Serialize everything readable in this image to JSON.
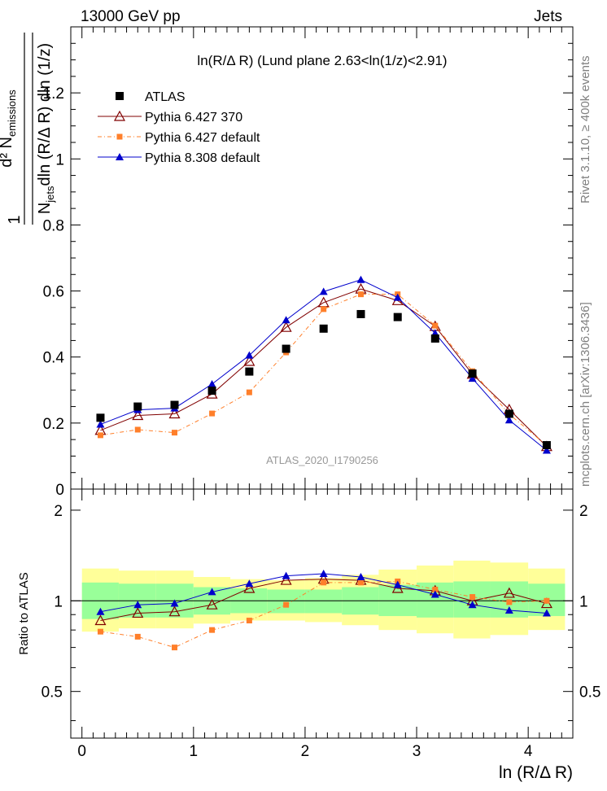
{
  "header": {
    "left": "13000 GeV pp",
    "right": "Jets"
  },
  "side_text": {
    "rivet": "Rivet 3.1.10, ≥ 400k events",
    "mcplots": "mcplots.cern.ch [arXiv:1306.3436]"
  },
  "chart_data": {
    "type": "line",
    "title": "ln(R/Δ R) (Lund plane 2.63<ln(1/z)<2.91)",
    "analysis_label": "ATLAS_2020_I1790256",
    "xlabel": "ln (R/Δ R)",
    "ylabel": {
      "numerator": "d² N",
      "numerator_sub": "emissions",
      "denominator": "N",
      "denominator_sub": "jets",
      "denominator_rest": "dln (R/Δ R) dln (1/z)",
      "prefix": "1"
    },
    "ratio_ylabel": "Ratio to ATLAS",
    "xlim": [
      -0.1,
      4.4
    ],
    "ylim": [
      0,
      1.4
    ],
    "ratio_ylim": [
      0.35,
      2.35
    ],
    "x_ticks": [
      0,
      1,
      2,
      3,
      4
    ],
    "y_ticks": [
      0,
      0.2,
      0.4,
      0.6,
      0.8,
      1,
      1.2
    ],
    "y_tick_labels": [
      "0",
      "0.2",
      "0.4",
      "0.6",
      "0.8",
      "1",
      "1.2"
    ],
    "ratio_ticks": [
      0.5,
      1,
      2
    ],
    "ratio_tick_labels": [
      "0.5",
      "1",
      "2"
    ],
    "x": [
      0.166,
      0.5,
      0.83,
      1.166,
      1.5,
      1.83,
      2.166,
      2.5,
      2.83,
      3.166,
      3.5,
      3.83,
      4.166
    ],
    "bin_edges": [
      0,
      0.33,
      0.66,
      1.0,
      1.33,
      1.66,
      2.0,
      2.33,
      2.66,
      3.0,
      3.33,
      3.66,
      4.0,
      4.33
    ],
    "series": [
      {
        "name": "ATLAS",
        "color": "#000000",
        "marker": "square",
        "values": [
          0.216,
          0.25,
          0.255,
          0.298,
          0.356,
          0.425,
          0.486,
          0.53,
          0.521,
          0.456,
          0.35,
          0.228,
          0.133
        ],
        "ratio": [
          1,
          1,
          1,
          1,
          1,
          1,
          1,
          1,
          1,
          1,
          1,
          1,
          1
        ]
      },
      {
        "name": "Pythia 6.427 370",
        "color": "#800000",
        "marker": "open-triangle",
        "values": [
          0.178,
          0.223,
          0.228,
          0.288,
          0.387,
          0.49,
          0.565,
          0.606,
          0.571,
          0.493,
          0.348,
          0.241,
          0.129
        ],
        "ratio": [
          0.86,
          0.91,
          0.92,
          0.97,
          1.1,
          1.17,
          1.18,
          1.17,
          1.1,
          1.08,
          1.0,
          1.06,
          0.98
        ]
      },
      {
        "name": "Pythia 6.427 default",
        "color": "#ff7f2a",
        "marker": "small-square",
        "values": [
          0.163,
          0.18,
          0.171,
          0.229,
          0.293,
          0.414,
          0.545,
          0.59,
          0.59,
          0.495,
          0.357,
          0.227,
          0.132
        ],
        "ratio": [
          0.79,
          0.76,
          0.7,
          0.8,
          0.86,
          0.97,
          1.15,
          1.15,
          1.16,
          1.09,
          1.03,
          0.99,
          1.0
        ]
      },
      {
        "name": "Pythia 8.308 default",
        "color": "#0000cc",
        "marker": "triangle",
        "values": [
          0.196,
          0.24,
          0.245,
          0.318,
          0.405,
          0.512,
          0.598,
          0.634,
          0.58,
          0.472,
          0.335,
          0.209,
          0.117
        ],
        "ratio": [
          0.92,
          0.97,
          0.98,
          1.07,
          1.14,
          1.21,
          1.23,
          1.2,
          1.13,
          1.05,
          0.97,
          0.93,
          0.91
        ]
      }
    ],
    "uncertainty_bands": {
      "inner_color": "#99ff99",
      "outer_color": "#ffff99",
      "inner": [
        [
          0.87,
          1.15
        ],
        [
          0.88,
          1.14
        ],
        [
          0.88,
          1.14
        ],
        [
          0.9,
          1.11
        ],
        [
          0.91,
          1.1
        ],
        [
          0.91,
          1.09
        ],
        [
          0.91,
          1.09
        ],
        [
          0.9,
          1.11
        ],
        [
          0.89,
          1.13
        ],
        [
          0.88,
          1.15
        ],
        [
          0.88,
          1.16
        ],
        [
          0.88,
          1.16
        ],
        [
          0.89,
          1.14
        ]
      ],
      "outer": [
        [
          0.79,
          1.28
        ],
        [
          0.81,
          1.26
        ],
        [
          0.81,
          1.26
        ],
        [
          0.84,
          1.2
        ],
        [
          0.86,
          1.18
        ],
        [
          0.86,
          1.17
        ],
        [
          0.85,
          1.19
        ],
        [
          0.83,
          1.22
        ],
        [
          0.8,
          1.27
        ],
        [
          0.78,
          1.31
        ],
        [
          0.75,
          1.36
        ],
        [
          0.77,
          1.34
        ],
        [
          0.8,
          1.28
        ]
      ]
    }
  }
}
